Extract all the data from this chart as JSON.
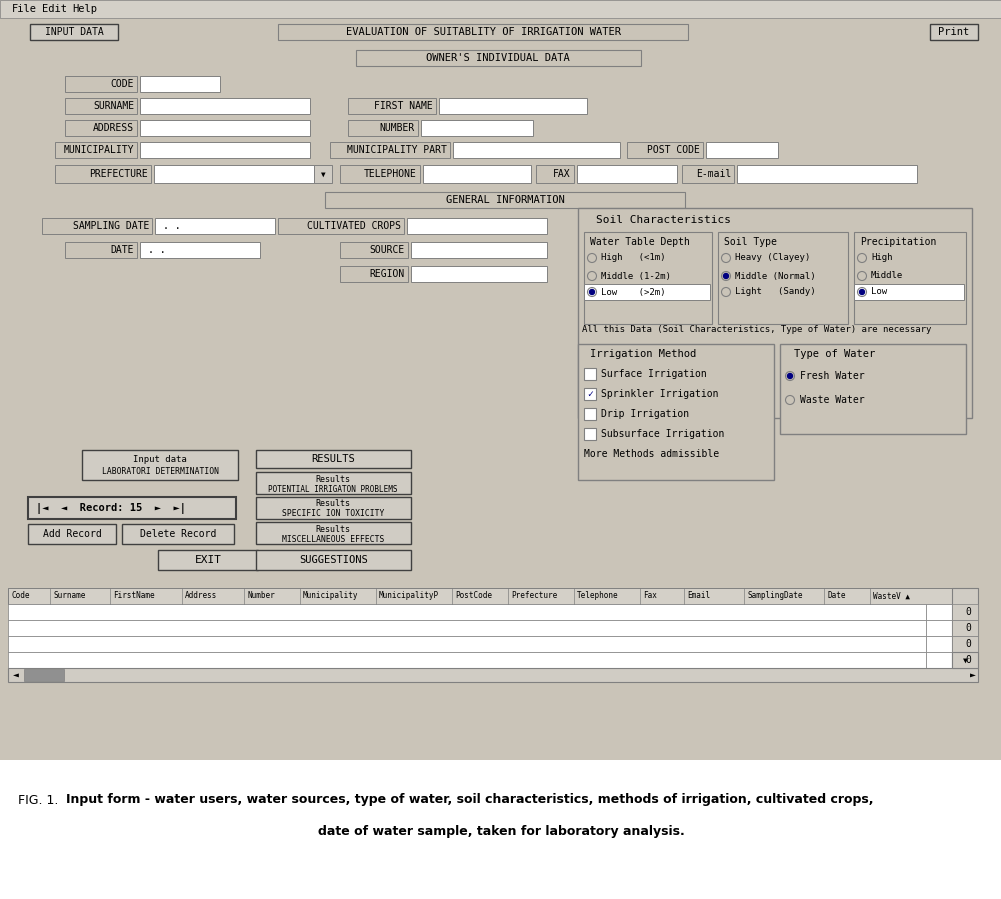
{
  "title": "EVALUATION OF SUITABLITY OF IRRIGATION WATER",
  "owners_title": "OWNER'S INDIVIDUAL DATA",
  "general_title": "GENERAL INFORMATION",
  "caption_prefix": "FIG. 1. ",
  "caption_bold": "Input form - water users, water sources, type of water, soil characteristics, methods of irrigation, cultivated crops,",
  "caption_line2": "date of water sample, taken for laboratory analysis.",
  "bg_color": "#cac4b8",
  "form_bg": "#cac4b8",
  "white": "#ffffff",
  "menu_bg": "#d4d0c8",
  "button_bg": "#d0ccc4",
  "input_bg": "#ffffff",
  "border_dark": "#404040",
  "border_mid": "#808080",
  "text_color": "#000000"
}
